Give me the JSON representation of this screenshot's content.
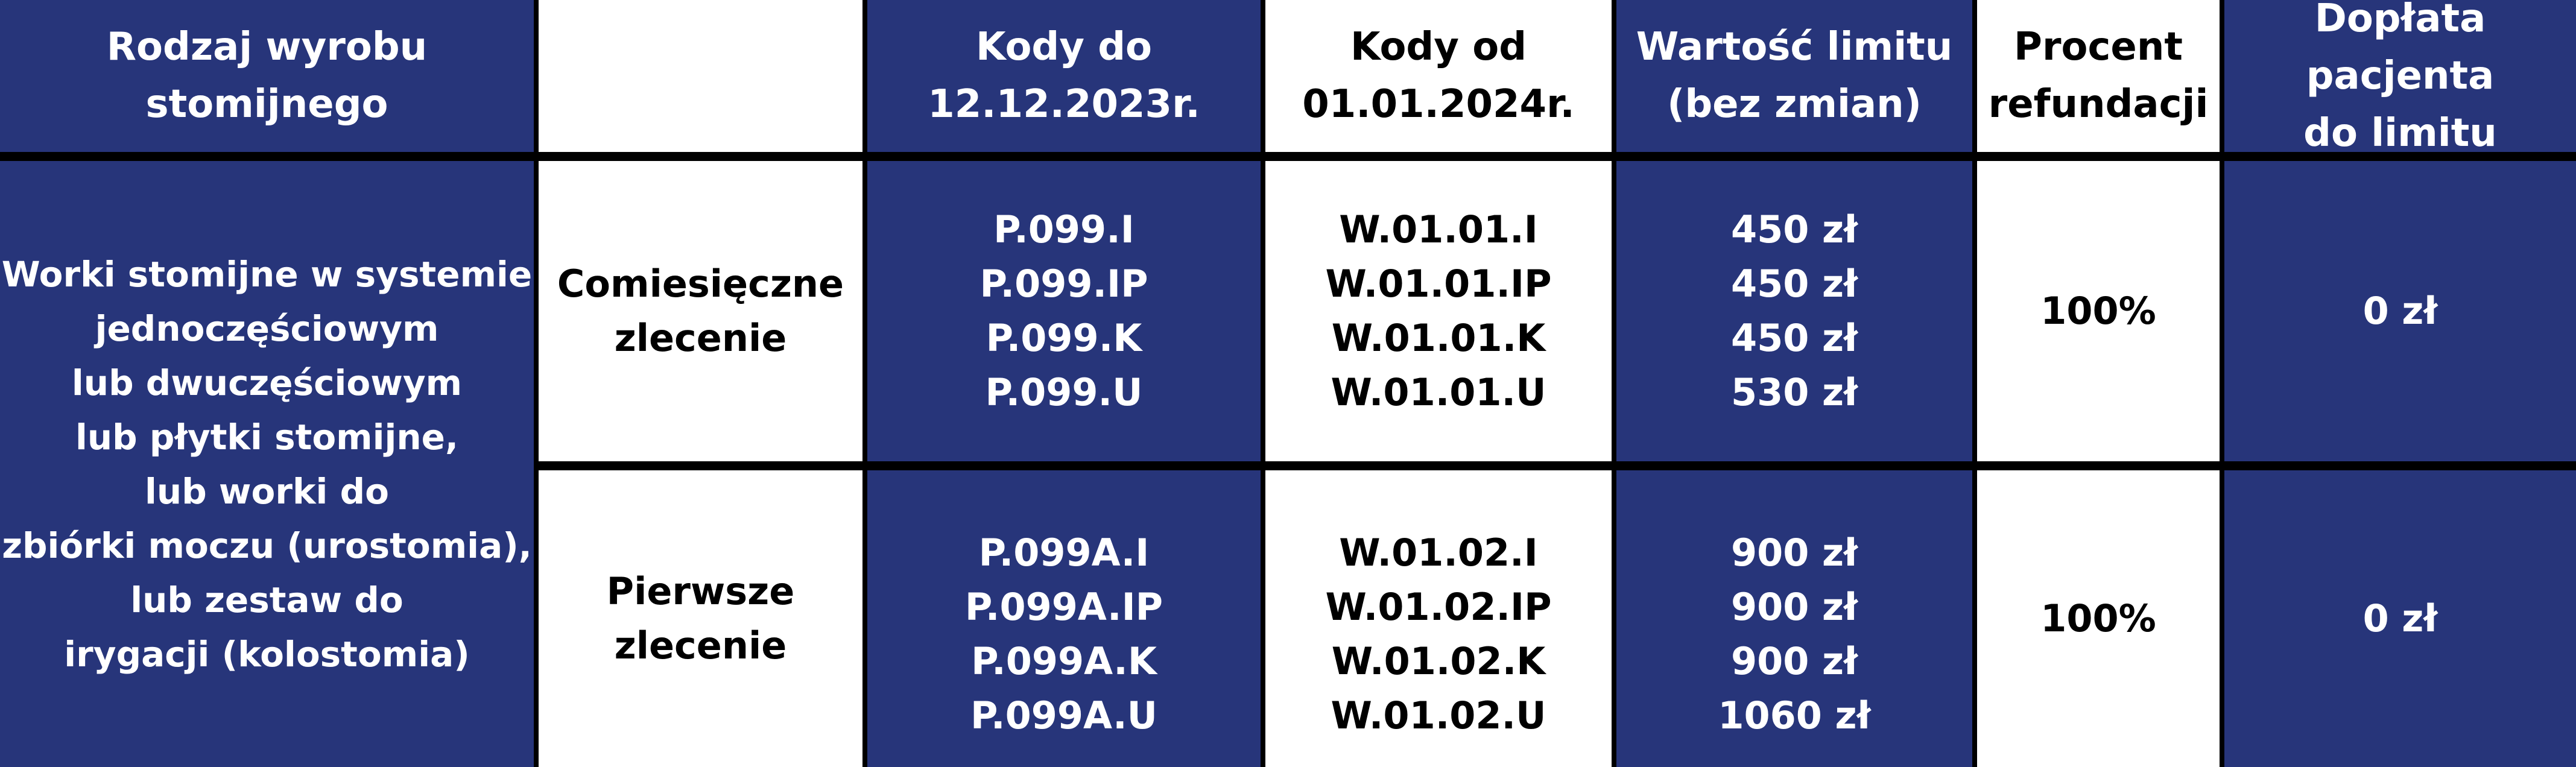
{
  "header": {
    "product_type": [
      "Rodzaj wyrobu",
      "stomijnego"
    ],
    "empty": "",
    "codes_to": [
      "Kody do",
      "12.12.2023r."
    ],
    "codes_from": [
      "Kody od",
      "01.01.2024r."
    ],
    "limit_value": [
      "Wartość limitu",
      "(bez zmian)"
    ],
    "refund_percent": [
      "Procent",
      "refundacji"
    ],
    "patient_copay": [
      "Dopłata pacjenta",
      "do limitu"
    ]
  },
  "product_description": [
    "Worki stomijne w systemie",
    "jednoczęściowym",
    "lub dwuczęściowym",
    "lub płytki stomijne,",
    "lub worki do",
    "zbiórki moczu (urostomia),",
    "lub zestaw do",
    "irygacji (kolostomia)"
  ],
  "rows": [
    {
      "order_type": [
        "Comiesięczne",
        "zlecenie"
      ],
      "codes_to": [
        "P.099.I",
        "P.099.IP",
        "P.099.K",
        "P.099.U"
      ],
      "codes_from": [
        "W.01.01.I",
        "W.01.01.IP",
        "W.01.01.K",
        "W.01.01.U"
      ],
      "limits": [
        "450 zł",
        "450 zł",
        "450 zł",
        "530 zł"
      ],
      "refund_percent": "100%",
      "copay": "0 zł"
    },
    {
      "order_type": [
        "Pierwsze",
        "zlecenie"
      ],
      "codes_to": [
        "P.099A.I",
        "P.099A.IP",
        "P.099A.K",
        "P.099A.U"
      ],
      "codes_from": [
        "W.01.02.I",
        "W.01.02.IP",
        "W.01.02.K",
        "W.01.02.U"
      ],
      "limits": [
        "900 zł",
        "900 zł",
        "900 zł",
        "1060 zł"
      ],
      "refund_percent": "100%",
      "copay": "0 zł"
    }
  ],
  "colors": {
    "blue": "#27357a",
    "white": "#ffffff",
    "border": "#000000"
  }
}
